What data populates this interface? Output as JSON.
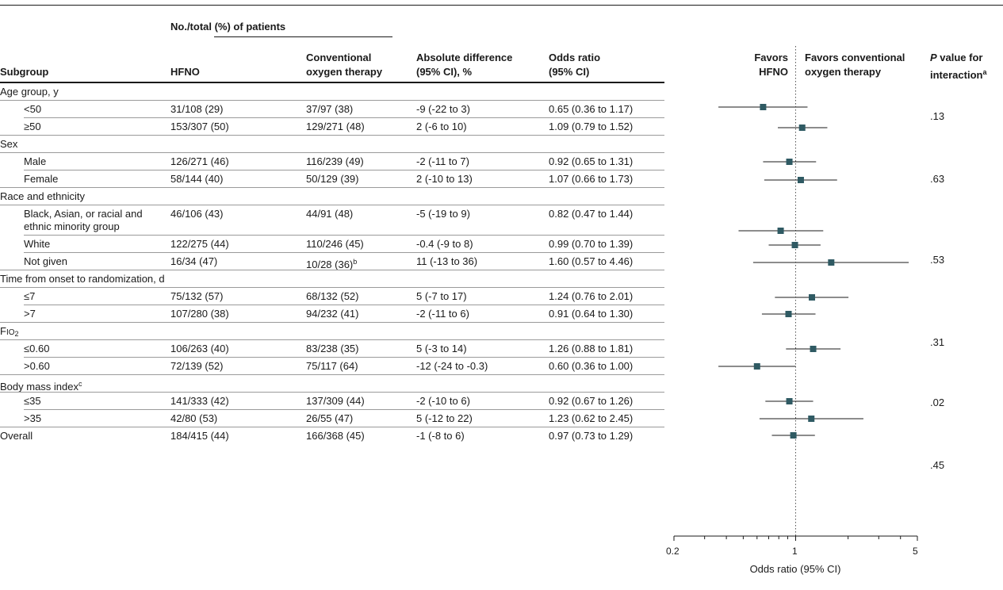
{
  "headers": {
    "group": "No./total (%) of patients",
    "subgroup": "Subgroup",
    "hfno": "HFNO",
    "cot_line1": "Conventional",
    "cot_line2": "oxygen therapy",
    "diff_line1": "Absolute difference",
    "diff_line2": "(95% CI), %",
    "or_line1": "Odds ratio",
    "or_line2": "(95% CI)",
    "favors_left_1": "Favors",
    "favors_left_2": "HFNO",
    "favors_right_1": "Favors conventional",
    "favors_right_2": "oxygen therapy",
    "pval_1_prefix": "P",
    "pval_1_rest": " value for",
    "pval_2": "interaction",
    "pval_2_sup": "a"
  },
  "categories": [
    {
      "label": "Age group, y",
      "pvalue": ".13"
    },
    {
      "label": "Sex",
      "pvalue": ".63"
    },
    {
      "label": "Race and ethnicity",
      "pvalue": ".53"
    },
    {
      "label": "Time from onset to randomization, d",
      "pvalue": ".31"
    },
    {
      "label_main": "F",
      "label_small": "IO",
      "label_sub": "2",
      "pvalue": ".02"
    },
    {
      "label": "Body mass index",
      "label_sup": "c",
      "pvalue": ".45"
    }
  ],
  "rows": [
    {
      "name": "<50",
      "hfno": "31/108 (29)",
      "cot": "37/97 (38)",
      "diff": "-9 (-22 to 3)",
      "or_text": "0.65 (0.36 to 1.17)"
    },
    {
      "name": "≥50",
      "hfno": "153/307 (50)",
      "cot": "129/271 (48)",
      "diff": "2 (-6 to 10)",
      "or_text": "1.09 (0.79 to 1.52)"
    },
    {
      "name": "Male",
      "hfno": "126/271 (46)",
      "cot": "116/239 (49)",
      "diff": "-2 (-11 to 7)",
      "or_text": "0.92 (0.65 to 1.31)"
    },
    {
      "name": "Female",
      "hfno": "58/144 (40)",
      "cot": "50/129 (39)",
      "diff": "2 (-10 to 13)",
      "or_text": "1.07 (0.66 to 1.73)"
    },
    {
      "name_1": "Black, Asian, or racial and",
      "name_2": "ethnic minority group",
      "hfno": "46/106 (43)",
      "cot": "44/91 (48)",
      "diff": "-5 (-19 to 9)",
      "or_text": "0.82 (0.47 to 1.44)"
    },
    {
      "name": "White",
      "hfno": "122/275 (44)",
      "cot": "110/246 (45)",
      "diff": "-0.4 (-9 to 8)",
      "or_text": "0.99 (0.70 to 1.39)"
    },
    {
      "name": "Not given",
      "hfno": "16/34 (47)",
      "cot": "10/28 (36)",
      "cot_sup": "b",
      "diff": "11 (-13 to 36)",
      "or_text": "1.60 (0.57 to 4.46)"
    },
    {
      "name": "≤7",
      "hfno": "75/132 (57)",
      "cot": "68/132 (52)",
      "diff": "5 (-7 to 17)",
      "or_text": "1.24 (0.76 to 2.01)"
    },
    {
      "name": ">7",
      "hfno": "107/280 (38)",
      "cot": "94/232 (41)",
      "diff": "-2 (-11 to 6)",
      "or_text": "0.91 (0.64 to 1.30)"
    },
    {
      "name": "≤0.60",
      "hfno": "106/263 (40)",
      "cot": "83/238 (35)",
      "diff": "5 (-3 to 14)",
      "or_text": "1.26 (0.88 to 1.81)"
    },
    {
      "name": ">0.60",
      "hfno": "72/139 (52)",
      "cot": "75/117 (64)",
      "diff": "-12 (-24 to -0.3)",
      "or_text": "0.60 (0.36 to 1.00)"
    },
    {
      "name": "≤35",
      "hfno": "141/333 (42)",
      "cot": "137/309 (44)",
      "diff": "-2 (-10 to 6)",
      "or_text": "0.92 (0.67 to 1.26)"
    },
    {
      "name": ">35",
      "hfno": "42/80 (53)",
      "cot": "26/55 (47)",
      "diff": "5 (-12 to 22)",
      "or_text": "1.23 (0.62 to 2.45)"
    },
    {
      "name": "Overall",
      "hfno": "184/415 (44)",
      "cot": "166/368 (45)",
      "diff": "-1 (-8 to 6)",
      "or_text": "0.97 (0.73 to 1.29)"
    }
  ],
  "axis": {
    "title": "Odds ratio (95% CI)",
    "tick_labels": [
      "0.2",
      "1",
      "5"
    ]
  },
  "colors": {
    "marker": "#2f5a63",
    "line": "#1a1a1a"
  },
  "chart_data": {
    "type": "forest",
    "xlabel": "Odds ratio (95% CI)",
    "xscale": "log",
    "xlim": [
      0.2,
      5
    ],
    "reference_line": 1,
    "points": [
      {
        "label": "<50",
        "or": 0.65,
        "lo": 0.36,
        "hi": 1.17
      },
      {
        "label": "≥50",
        "or": 1.09,
        "lo": 0.79,
        "hi": 1.52
      },
      {
        "label": "Male",
        "or": 0.92,
        "lo": 0.65,
        "hi": 1.31
      },
      {
        "label": "Female",
        "or": 1.07,
        "lo": 0.66,
        "hi": 1.73
      },
      {
        "label": "Black, Asian, or racial and ethnic minority group",
        "or": 0.82,
        "lo": 0.47,
        "hi": 1.44
      },
      {
        "label": "White",
        "or": 0.99,
        "lo": 0.7,
        "hi": 1.39
      },
      {
        "label": "Not given",
        "or": 1.6,
        "lo": 0.57,
        "hi": 4.46
      },
      {
        "label": "≤7",
        "or": 1.24,
        "lo": 0.76,
        "hi": 2.01
      },
      {
        "label": ">7",
        "or": 0.91,
        "lo": 0.64,
        "hi": 1.3
      },
      {
        "label": "≤0.60",
        "or": 1.26,
        "lo": 0.88,
        "hi": 1.81
      },
      {
        "label": ">0.60",
        "or": 0.6,
        "lo": 0.36,
        "hi": 1.0
      },
      {
        "label": "≤35",
        "or": 0.92,
        "lo": 0.67,
        "hi": 1.26
      },
      {
        "label": ">35",
        "or": 1.23,
        "lo": 0.62,
        "hi": 2.45
      },
      {
        "label": "Overall",
        "or": 0.97,
        "lo": 0.73,
        "hi": 1.29
      }
    ]
  }
}
